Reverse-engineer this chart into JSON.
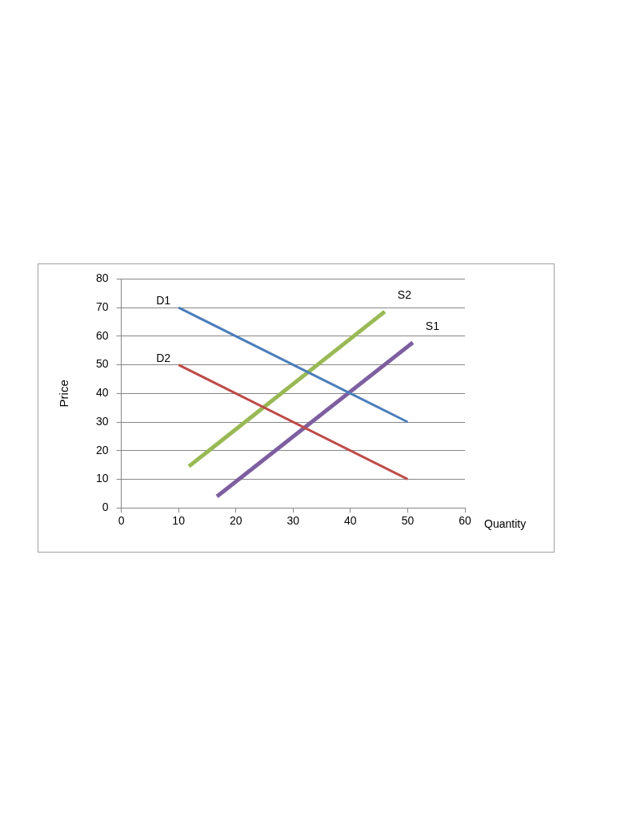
{
  "chart_data": {
    "type": "line",
    "xlabel": "Quantity",
    "ylabel": "Price",
    "xlim": [
      0,
      60
    ],
    "xticks": [
      0,
      10,
      20,
      30,
      40,
      50,
      60
    ],
    "ylim": [
      0,
      80
    ],
    "yticks": [
      0,
      10,
      20,
      30,
      40,
      50,
      60,
      70,
      80
    ],
    "grid": "y",
    "legend": false,
    "marker": "none",
    "line_style": "solid",
    "series": [
      {
        "name": "D1",
        "color": "#4a7ebb",
        "x": [
          10,
          50
        ],
        "values": [
          70,
          30
        ]
      },
      {
        "name": "D2",
        "color": "#be4b48",
        "x": [
          10,
          50
        ],
        "values": [
          50,
          10
        ]
      },
      {
        "name": "S2",
        "color": "#98b954",
        "x": [
          11.8,
          46
        ],
        "values": [
          14.5,
          68.6
        ]
      },
      {
        "name": "S1",
        "color": "#7d5fa0",
        "x": [
          16.7,
          50.9
        ],
        "values": [
          4,
          57.8
        ]
      }
    ]
  }
}
